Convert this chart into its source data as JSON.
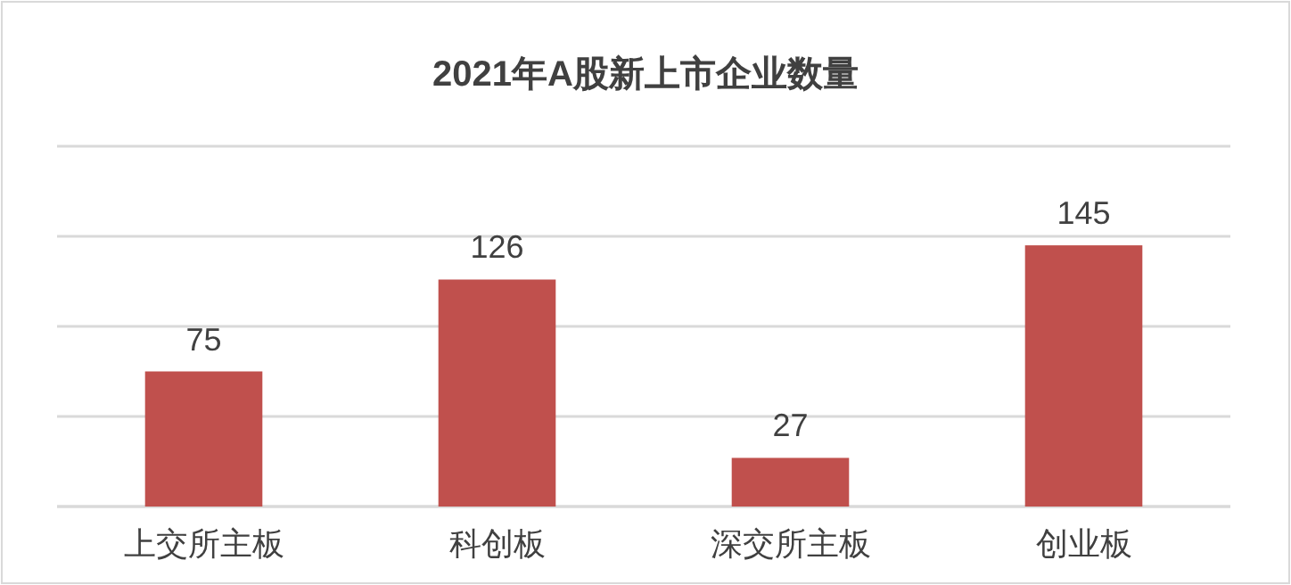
{
  "chart_data": {
    "type": "bar",
    "title": "2021年A股新上市企业数量",
    "categories": [
      "上交所主板",
      "科创板",
      "深交所主板",
      "创业板"
    ],
    "values": [
      75,
      126,
      27,
      145
    ],
    "color": "#c0504d",
    "ylim": [
      0,
      200
    ],
    "yticks": [
      {
        "value": 0,
        "label": null
      },
      {
        "value": 50,
        "label": null
      },
      {
        "value": 100,
        "label": null
      },
      {
        "value": 150,
        "label": null
      },
      {
        "value": 200,
        "label": null
      }
    ],
    "tick_labels": "x",
    "grid": "y",
    "data_labels": true
  }
}
